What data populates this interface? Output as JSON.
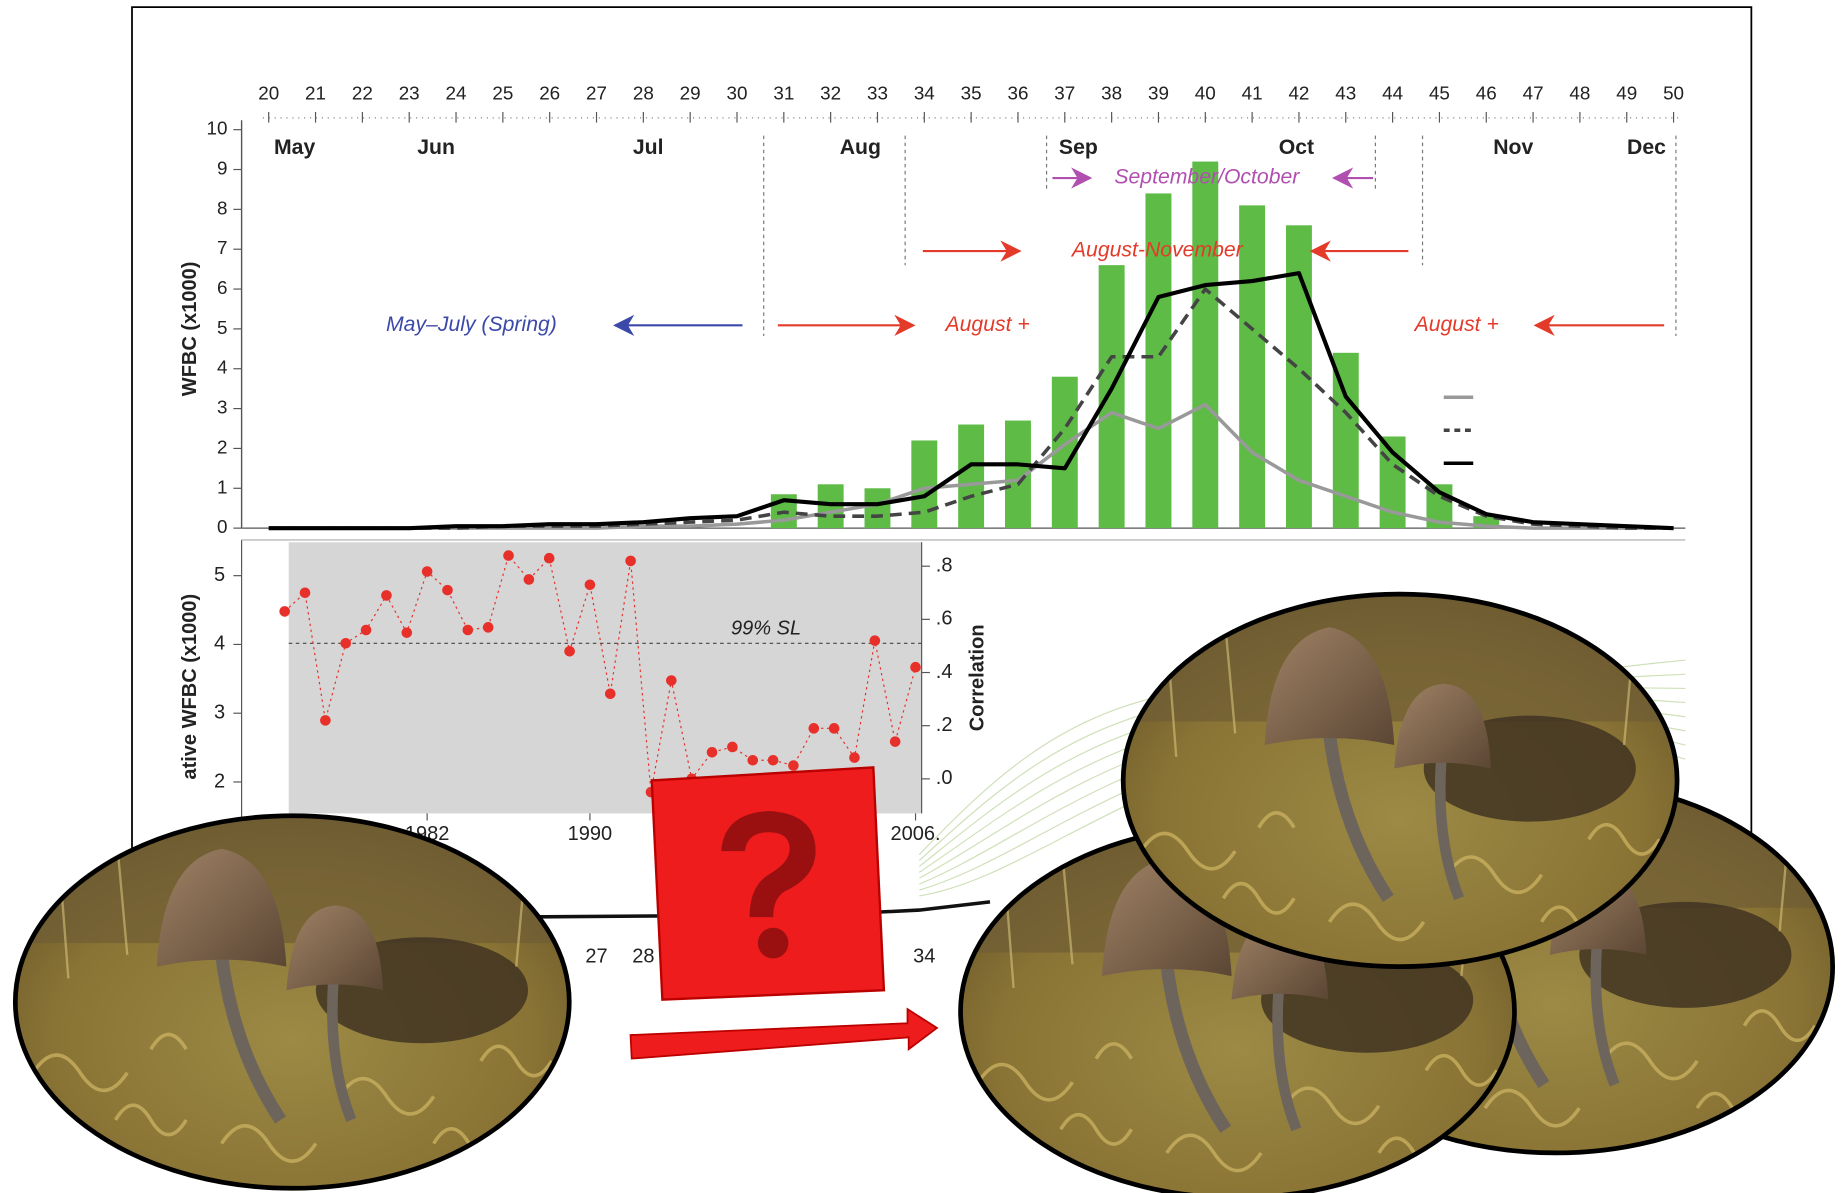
{
  "chart_data": [
    {
      "type": "bar",
      "y_label": "WFBC (x1000)",
      "x": [
        20,
        21,
        22,
        23,
        24,
        25,
        26,
        27,
        28,
        29,
        30,
        31,
        32,
        33,
        34,
        35,
        36,
        37,
        38,
        39,
        40,
        41,
        42,
        43,
        44,
        45,
        46,
        47,
        48,
        49,
        50
      ],
      "xlim": [
        20,
        50
      ],
      "xticks": [
        20,
        21,
        22,
        23,
        24,
        25,
        26,
        27,
        28,
        29,
        30,
        31,
        32,
        33,
        34,
        35,
        36,
        37,
        38,
        39,
        40,
        41,
        42,
        43,
        44,
        45,
        46,
        47,
        48,
        49,
        50
      ],
      "ylim": [
        0,
        10
      ],
      "yticks": [
        0,
        1,
        2,
        3,
        4,
        5,
        6,
        7,
        8,
        9,
        10
      ],
      "months": [
        "May",
        "Jun",
        "Jul",
        "Aug",
        "Sep",
        "Oct",
        "Nov",
        "Dec"
      ],
      "annotations": [
        "May–July (Spring)",
        "August +",
        "August-November",
        "September/October",
        "August +"
      ],
      "series": [
        {
          "type": "bar",
          "color": "#5dbb46",
          "values": [
            null,
            null,
            null,
            null,
            null,
            null,
            null,
            null,
            null,
            null,
            null,
            0.85,
            1.1,
            1.0,
            2.2,
            2.6,
            2.7,
            3.8,
            6.6,
            8.4,
            9.2,
            8.1,
            7.6,
            4.4,
            2.3,
            1.1,
            0.3,
            null,
            null,
            null,
            null
          ]
        },
        {
          "type": "line",
          "color": "#999999",
          "style": "solid",
          "values": [
            0,
            0,
            0,
            0,
            0,
            0,
            0,
            0,
            0.05,
            0.05,
            0.1,
            0.2,
            0.4,
            0.6,
            1.0,
            1.1,
            1.2,
            2.1,
            2.9,
            2.5,
            3.1,
            1.9,
            1.2,
            0.8,
            0.4,
            0.15,
            0.05,
            0,
            0,
            0,
            0
          ]
        },
        {
          "type": "line",
          "color": "#444444",
          "style": "dashed",
          "values": [
            0,
            0,
            0,
            0,
            0,
            0.05,
            0.05,
            0.05,
            0.1,
            0.15,
            0.2,
            0.4,
            0.3,
            0.3,
            0.4,
            0.8,
            1.1,
            2.5,
            4.3,
            4.3,
            6.0,
            5.0,
            4.0,
            2.9,
            1.6,
            0.8,
            0.3,
            0.1,
            0.05,
            0,
            0
          ]
        },
        {
          "type": "line",
          "color": "#000000",
          "style": "solid",
          "values": [
            0,
            0,
            0,
            0,
            0.05,
            0.05,
            0.1,
            0.1,
            0.15,
            0.25,
            0.3,
            0.7,
            0.6,
            0.6,
            0.8,
            1.6,
            1.6,
            1.5,
            3.5,
            5.8,
            6.1,
            6.2,
            6.4,
            3.3,
            1.9,
            0.9,
            0.35,
            0.15,
            0.1,
            0.05,
            0
          ]
        }
      ]
    },
    {
      "type": "scatter",
      "y_label": "ative WFBC (x1000)",
      "ylim": [
        0,
        5.4
      ],
      "yticks": [
        2,
        3,
        4,
        5
      ],
      "bottom_xticks": [
        27,
        28,
        34
      ],
      "y2_label": "Correlation",
      "y2lim": [
        -0.13,
        0.89
      ],
      "y2ticks": [
        {
          "value": 0,
          "label": ".0"
        },
        {
          "value": 0.2,
          "label": ".2"
        },
        {
          "value": 0.4,
          "label": ".4"
        },
        {
          "value": 0.6,
          "label": ".6"
        },
        {
          "value": 0.8,
          "label": ".8"
        }
      ],
      "xlim": [
        1975.2,
        2006.3
      ],
      "xticks": [
        1982,
        1990,
        {
          "value": 2006,
          "label": "2006."
        }
      ],
      "threshold": {
        "value": 0.51,
        "label": "99% SL"
      },
      "x": [
        1975,
        1976,
        1977,
        1978,
        1979,
        1980,
        1981,
        1982,
        1983,
        1984,
        1985,
        1986,
        1987,
        1988,
        1989,
        1990,
        1991,
        1992,
        1993,
        1994,
        1995,
        1996,
        1997,
        1998,
        1999,
        2000,
        2001,
        2002,
        2003,
        2004,
        2005,
        2006
      ],
      "series": [
        {
          "axis": "y2",
          "color": "#e8302a",
          "values": [
            0.63,
            0.7,
            0.22,
            0.51,
            0.56,
            0.69,
            0.55,
            0.78,
            0.71,
            0.56,
            0.57,
            0.84,
            0.75,
            0.83,
            0.48,
            0.73,
            0.32,
            0.82,
            -0.05,
            0.37,
            0.0,
            0.1,
            0.12,
            0.07,
            0.07,
            0.05,
            0.19,
            0.19,
            0.08,
            0.52,
            0.14,
            0.42
          ]
        }
      ]
    }
  ]
}
